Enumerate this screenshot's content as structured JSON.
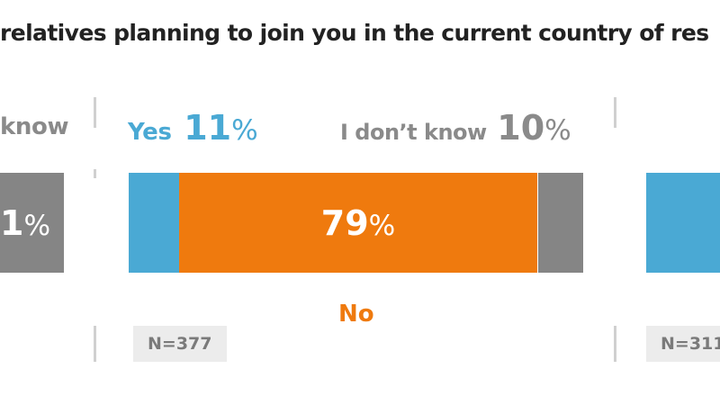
{
  "title": "relatives planning to join you in the current country of res",
  "colors": {
    "yes": "#4aa9d4",
    "no": "#ef7a0e",
    "dont_know": "#858585",
    "divider": "#d0d0d0",
    "nbox": "#ececec"
  },
  "left_partial": {
    "dont_know_label_fragment": "know",
    "dont_know_pct_fragment": "1",
    "pct_symbol": "%"
  },
  "middle": {
    "yes_label": "Yes",
    "yes_value": "11",
    "dont_know_label": "I don’t know",
    "dont_know_value": "10",
    "no_label": "No",
    "no_value": "79",
    "pct_symbol": "%",
    "n_label": "N=377"
  },
  "right_partial": {
    "n_label": "N=311"
  },
  "chart_data": {
    "type": "bar",
    "title": "relatives planning to join you in the current country of res",
    "orientation": "horizontal-stacked",
    "categories": [
      "N=377"
    ],
    "series": [
      {
        "name": "Yes",
        "values": [
          11
        ]
      },
      {
        "name": "No",
        "values": [
          79
        ]
      },
      {
        "name": "I don’t know",
        "values": [
          10
        ]
      }
    ]
  }
}
